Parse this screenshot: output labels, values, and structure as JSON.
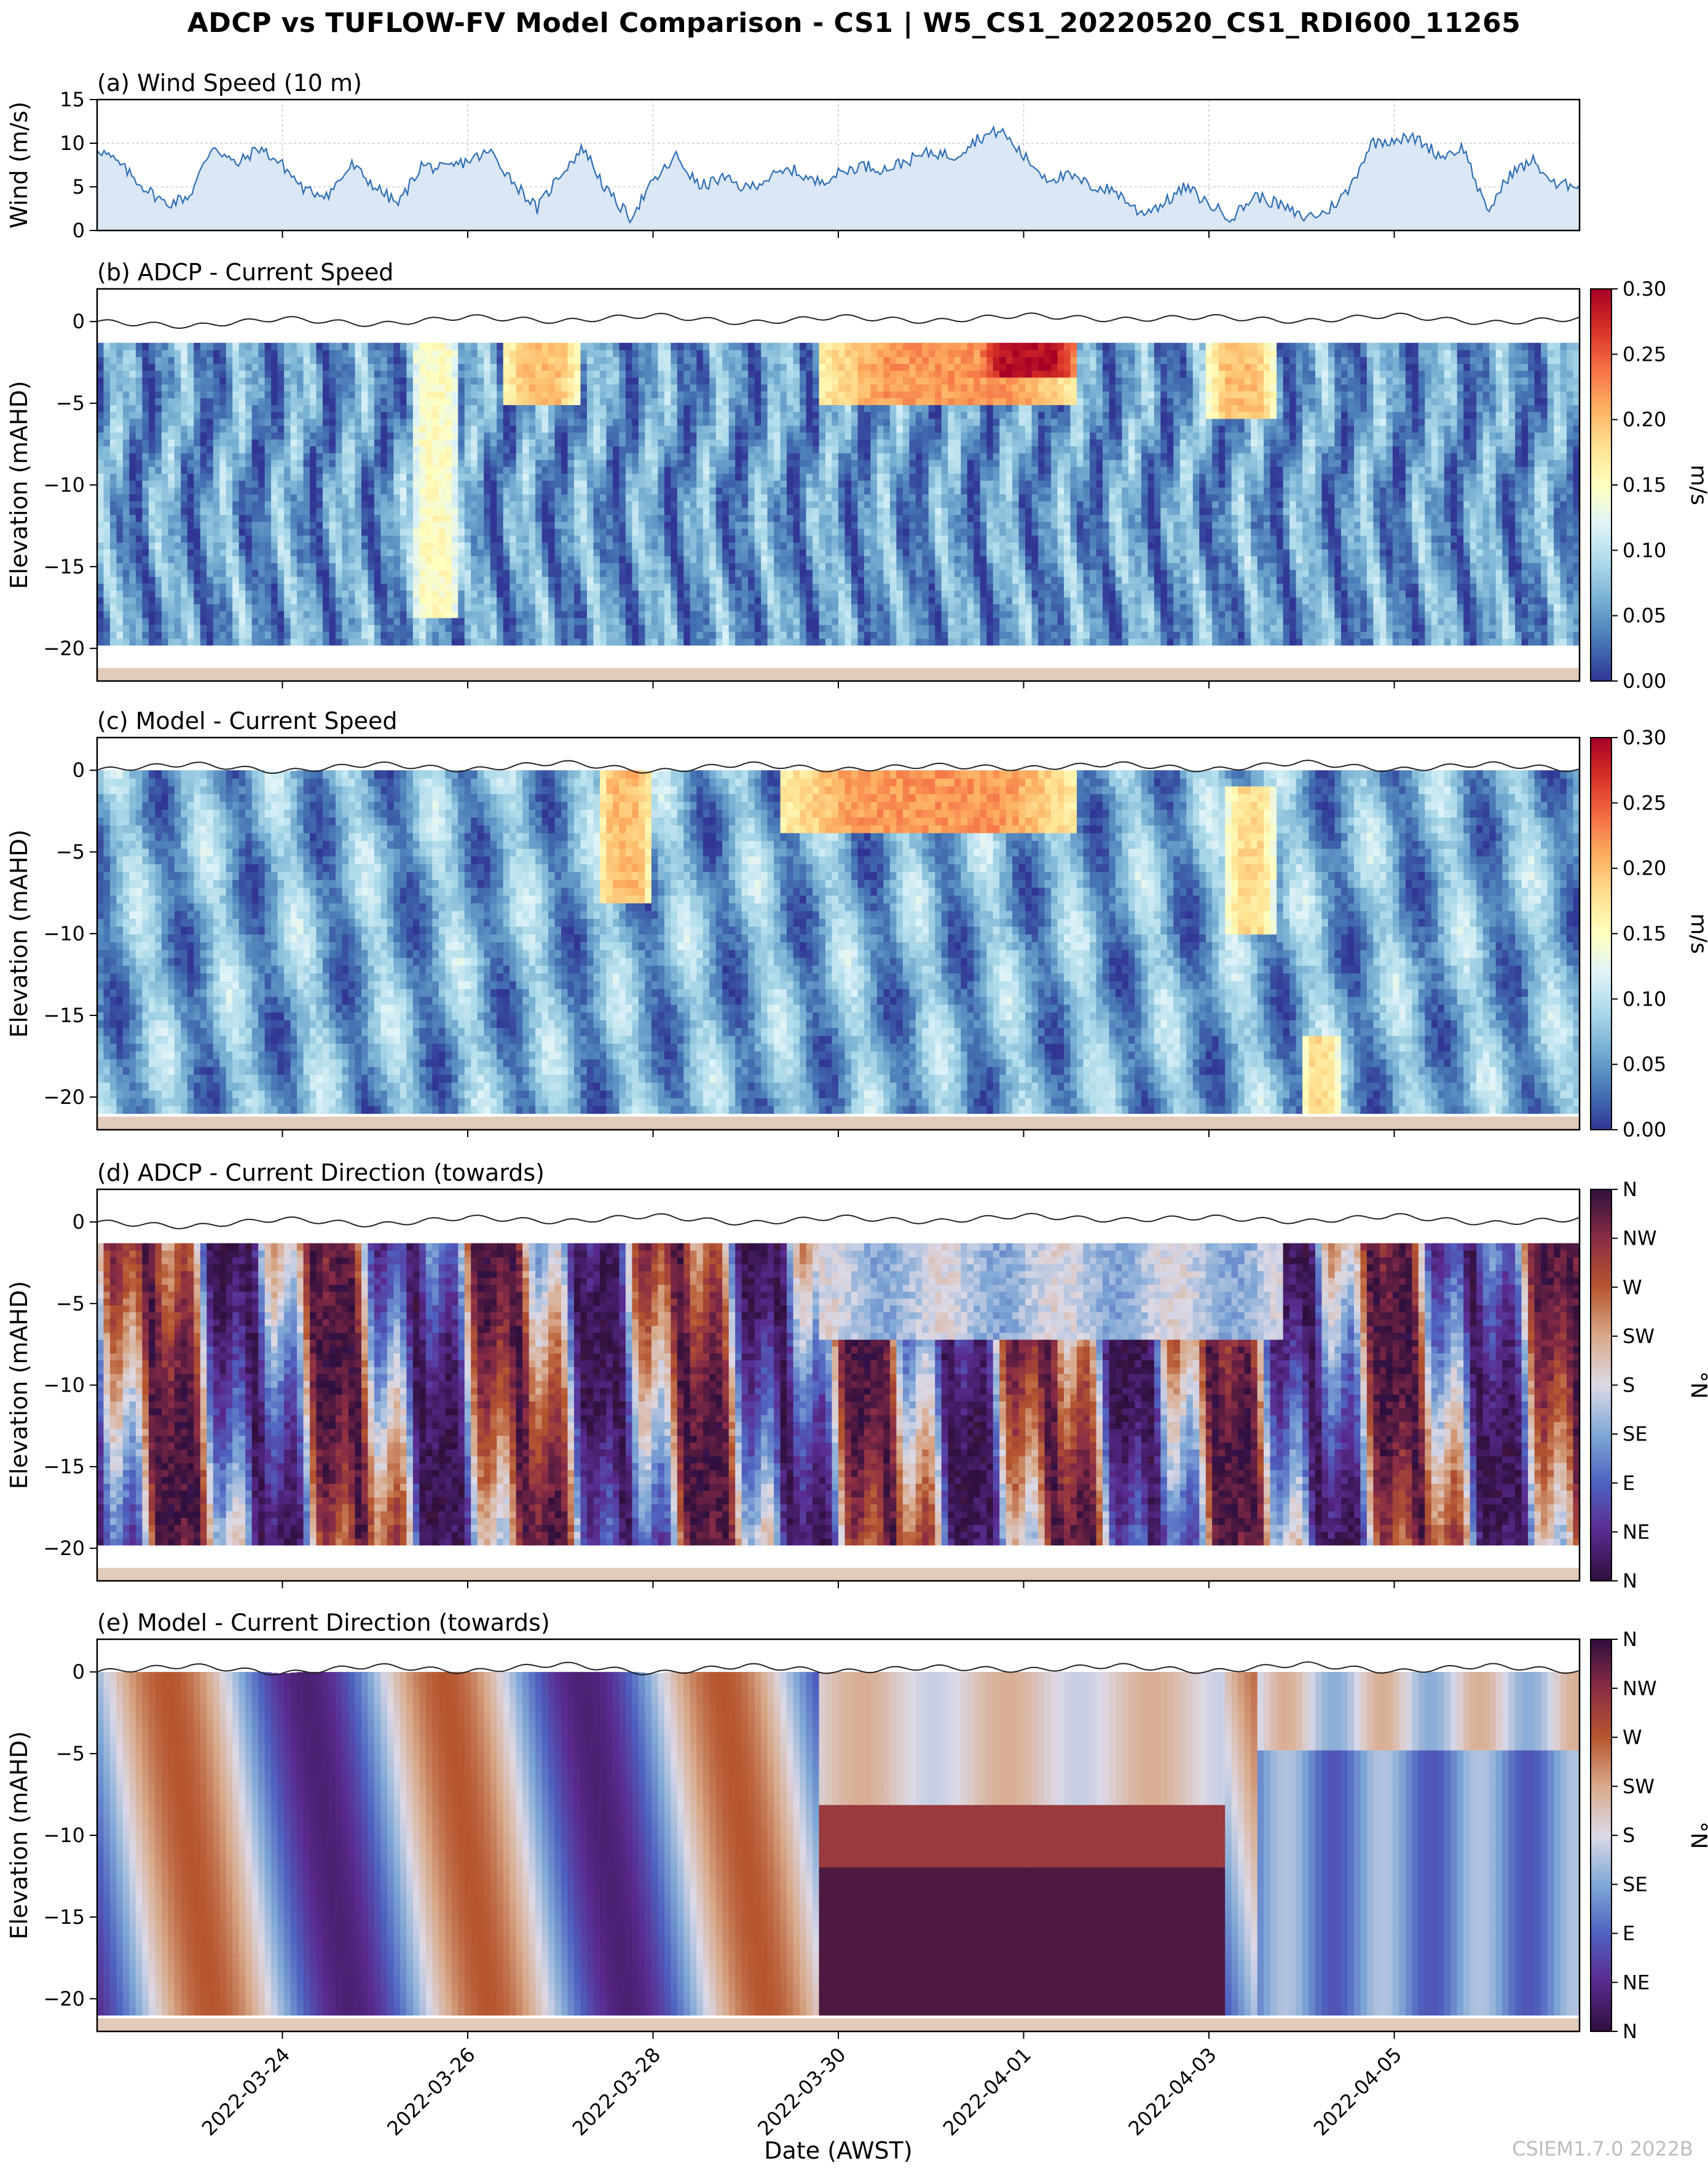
{
  "figure": {
    "title": "ADCP vs TUFLOW-FV Model Comparison - CS1 | W5_CS1_20220520_CS1_RDI600_11265",
    "watermark": "CSIEM1.7.0 2022B"
  },
  "colors": {
    "wind_line": "#2f6fb5",
    "wind_fill": "#dbe7f5",
    "bed": "#e3cbbb",
    "surface_line": "#222222",
    "speed_colormap": [
      "#313695",
      "#4575b4",
      "#74add1",
      "#abd9e9",
      "#e0f3f8",
      "#ffffbf",
      "#fee090",
      "#fdae61",
      "#f46d43",
      "#d73027",
      "#a50026"
    ],
    "direction_colormap": [
      "#2f0f3d",
      "#5a2a8f",
      "#4f62c0",
      "#7fa8d6",
      "#dcd9e6",
      "#d8a98a",
      "#b6562f",
      "#8a2c45",
      "#2f0f3d"
    ]
  },
  "chart_data": [
    {
      "type": "area",
      "panel": "(a)",
      "title": "(a) Wind Speed (10 m)",
      "ylabel": "Wind (m/s)",
      "xlabel": "",
      "ylim": [
        0,
        15
      ],
      "yticks": [
        0,
        5,
        10,
        15
      ],
      "xlim_days": [
        0,
        16
      ],
      "x_days": [
        0,
        0.25,
        0.5,
        0.75,
        1,
        1.25,
        1.5,
        1.75,
        2,
        2.25,
        2.5,
        2.75,
        3,
        3.25,
        3.5,
        3.75,
        4,
        4.25,
        4.5,
        4.75,
        5,
        5.25,
        5.5,
        5.75,
        6,
        6.25,
        6.5,
        6.75,
        7,
        7.25,
        7.5,
        7.75,
        8,
        8.25,
        8.5,
        8.75,
        9,
        9.25,
        9.5,
        9.75,
        10,
        10.25,
        10.5,
        10.75,
        11,
        11.25,
        11.5,
        11.75,
        12,
        12.25,
        12.5,
        12.75,
        13,
        13.25,
        13.5,
        13.75,
        14,
        14.25,
        14.5,
        14.75,
        15,
        15.25,
        15.5,
        15.75,
        16
      ],
      "values": [
        9.5,
        7.5,
        5,
        3,
        4,
        9.8,
        7.5,
        9.5,
        7.5,
        4.5,
        4.2,
        7.5,
        5,
        3,
        7.5,
        7,
        8,
        9,
        5.5,
        2.5,
        6.5,
        9.5,
        4.5,
        1.5,
        5.5,
        8.5,
        5,
        6,
        4.8,
        6,
        7,
        5.5,
        6.5,
        7.5,
        7,
        8,
        9,
        8.5,
        10.5,
        11.5,
        8.5,
        6,
        6.2,
        5,
        4.5,
        2,
        3,
        5,
        3,
        1.5,
        4,
        3,
        1.5,
        2,
        4.5,
        10,
        10.5,
        10.5,
        8.5,
        9.5,
        2,
        6.5,
        8,
        5,
        5.5
      ]
    },
    {
      "type": "heatmap",
      "panel": "(b)",
      "title": "(b) ADCP - Current Speed",
      "ylabel": "Elevation (mAHD)",
      "ylim": [
        -22,
        2
      ],
      "yticks": [
        0,
        -5,
        -10,
        -15,
        -20
      ],
      "colorbar_label": "m/s",
      "colorbar_ticks": [
        "0.00",
        "0.05",
        "0.10",
        "0.15",
        "0.20",
        "0.25",
        "0.30"
      ],
      "clim": [
        0,
        0.3
      ],
      "data_top_m": -1.3,
      "data_bottom_m": -19.8,
      "bed_m": -21.2,
      "surface_m": [
        0,
        -0.3,
        0.2,
        -0.2,
        0.3,
        0,
        0.4,
        -0.1,
        0.3,
        0,
        0.4,
        0.1,
        0.3,
        0,
        0.4,
        -0.1,
        0.2
      ],
      "features": [
        {
          "t0": 3.4,
          "t1": 3.9,
          "z0": -18,
          "z1": -1.3,
          "v": 0.15
        },
        {
          "t0": 4.4,
          "t1": 5.2,
          "z0": -5,
          "z1": -1.3,
          "v": 0.2
        },
        {
          "t0": 7.8,
          "t1": 10.6,
          "z0": -5,
          "z1": -1.3,
          "v": 0.22
        },
        {
          "t0": 9.5,
          "t1": 10.6,
          "z0": -3.5,
          "z1": -1.3,
          "v": 0.29
        },
        {
          "t0": 12,
          "t1": 12.7,
          "z0": -6,
          "z1": -1.3,
          "v": 0.2
        }
      ]
    },
    {
      "type": "heatmap",
      "panel": "(c)",
      "title": "(c) Model - Current Speed",
      "ylabel": "Elevation (mAHD)",
      "ylim": [
        -22,
        2
      ],
      "yticks": [
        0,
        -5,
        -10,
        -15,
        -20
      ],
      "colorbar_label": "m/s",
      "colorbar_ticks": [
        "0.00",
        "0.05",
        "0.10",
        "0.15",
        "0.20",
        "0.25",
        "0.30"
      ],
      "clim": [
        0,
        0.3
      ],
      "data_top_m": 0,
      "data_bottom_m": -21,
      "bed_m": -21.2,
      "surface_m": [
        0,
        0.4,
        -0.1,
        0.4,
        0,
        0.5,
        -0.1,
        0.4,
        0,
        0.3,
        0.1,
        0.4,
        0,
        0.5,
        0,
        0.4,
        0
      ],
      "features": [
        {
          "t0": 5.4,
          "t1": 6,
          "z0": -8,
          "z1": 0,
          "v": 0.2
        },
        {
          "t0": 7.4,
          "t1": 10.6,
          "z0": -4,
          "z1": 0,
          "v": 0.22
        },
        {
          "t0": 12.2,
          "t1": 12.7,
          "z0": -10,
          "z1": -1,
          "v": 0.18
        },
        {
          "t0": 13,
          "t1": 13.4,
          "z0": -21,
          "z1": -16,
          "v": 0.18
        }
      ]
    },
    {
      "type": "heatmap",
      "panel": "(d)",
      "title": "(d) ADCP - Current Direction (towards)",
      "ylabel": "Elevation (mAHD)",
      "ylim": [
        -22,
        2
      ],
      "yticks": [
        0,
        -5,
        -10,
        -15,
        -20
      ],
      "colorbar_label": "°N",
      "colorbar_ticks": [
        "N",
        "NE",
        "E",
        "SE",
        "S",
        "SW",
        "W",
        "NW",
        "N"
      ],
      "clim": [
        0,
        360
      ],
      "data_top_m": -1.3,
      "data_bottom_m": -19.8,
      "bed_m": -21.2,
      "surface_m": [
        0,
        -0.3,
        0.2,
        -0.2,
        0.3,
        0,
        0.4,
        -0.1,
        0.3,
        0,
        0.4,
        0.1,
        0.3,
        0,
        0.4,
        -0.1,
        0.2
      ]
    },
    {
      "type": "heatmap",
      "panel": "(e)",
      "title": "(e) Model - Current Direction (towards)",
      "ylabel": "Elevation (mAHD)",
      "ylim": [
        -22,
        2
      ],
      "yticks": [
        0,
        -5,
        -10,
        -15,
        -20
      ],
      "colorbar_label": "°N",
      "colorbar_ticks": [
        "N",
        "NE",
        "E",
        "SE",
        "S",
        "SW",
        "W",
        "NW",
        "N"
      ],
      "clim": [
        0,
        360
      ],
      "data_top_m": 0,
      "data_bottom_m": -21,
      "bed_m": -21.2,
      "surface_m": [
        0,
        0.4,
        -0.1,
        0.4,
        0,
        0.5,
        -0.1,
        0.4,
        0,
        0.3,
        0.1,
        0.4,
        0,
        0.5,
        0,
        0.4,
        0
      ]
    }
  ],
  "x_axis": {
    "label": "Date (AWST)",
    "start": "2022-03-22",
    "end": "2022-04-07",
    "tick_days": [
      2,
      4,
      6,
      8,
      10,
      12,
      14
    ],
    "tick_labels": [
      "2022-03-24",
      "2022-03-26",
      "2022-03-28",
      "2022-03-30",
      "2022-04-01",
      "2022-04-03",
      "2022-04-05"
    ]
  }
}
